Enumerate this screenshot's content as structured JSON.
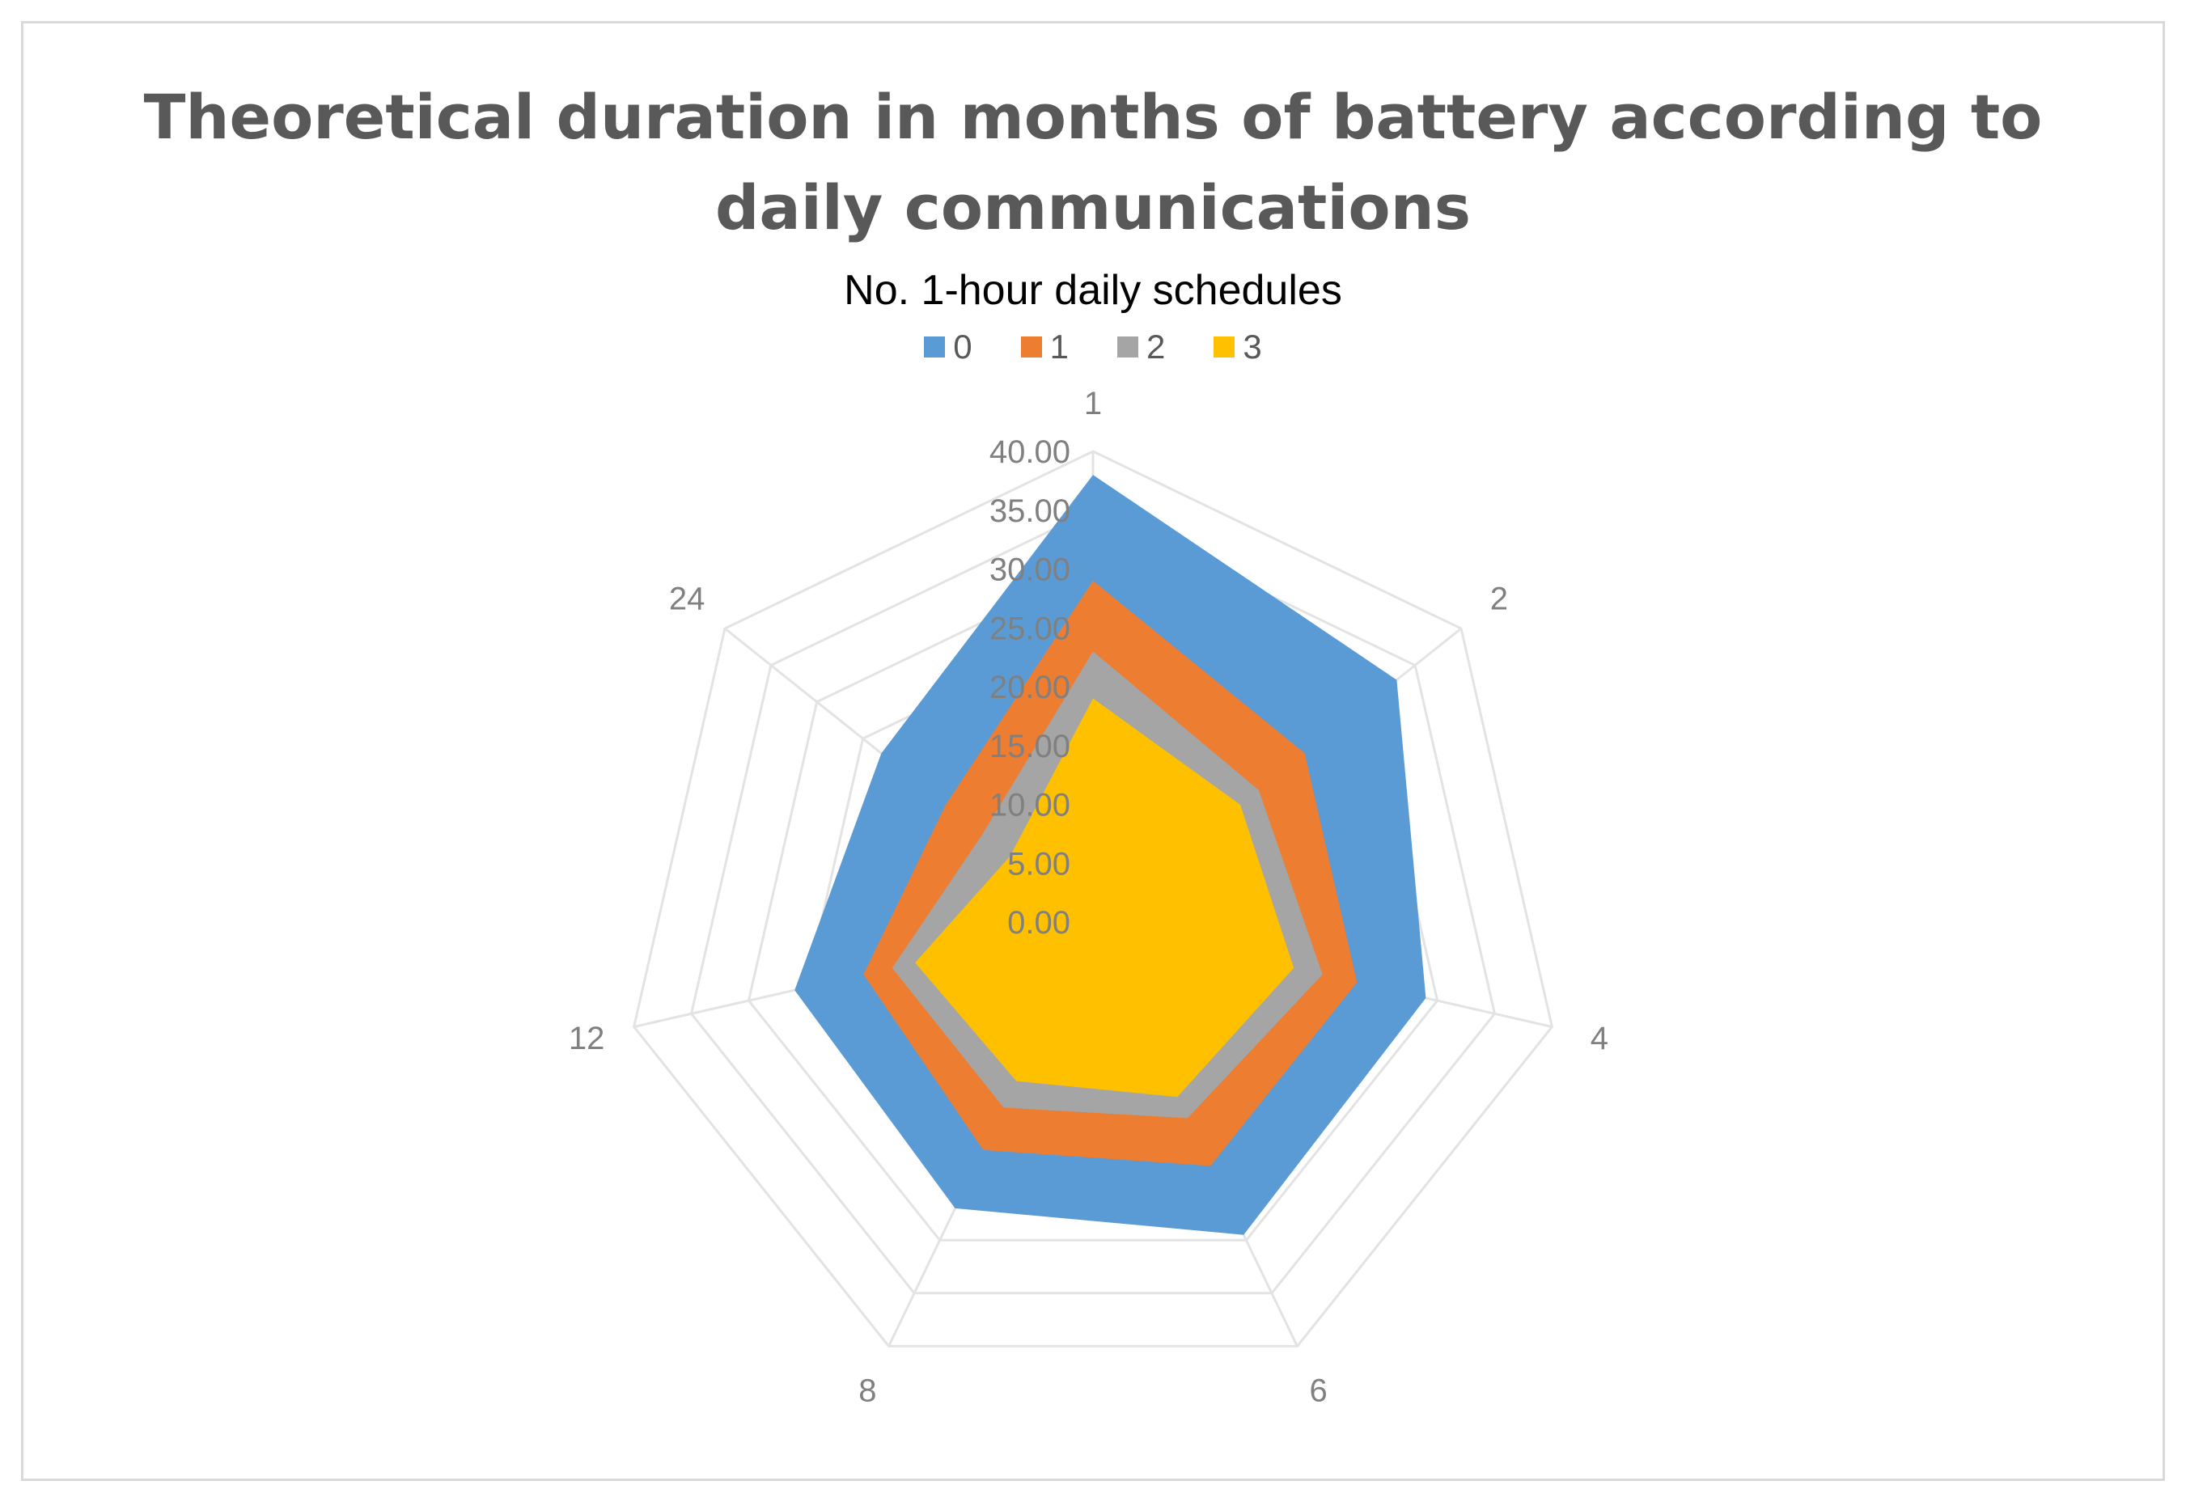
{
  "chart_data": {
    "type": "radar",
    "title": "Theoretical duration in months of battery according to daily communications",
    "title_lines": [
      "Theoretical duration in months of battery according to",
      "daily communications"
    ],
    "legend_title": "No. 1-hour daily schedules",
    "categories": [
      "1",
      "2",
      "4",
      "6",
      "8",
      "12",
      "24"
    ],
    "r_ticks": [
      "0.00",
      "5.00",
      "10.00",
      "15.00",
      "20.00",
      "25.00",
      "30.00",
      "35.00",
      "40.00"
    ],
    "rlim": [
      0,
      40
    ],
    "series": [
      {
        "name": "0",
        "color": "#5b9bd5",
        "values": [
          38,
          33,
          29,
          29.5,
          27,
          26,
          23
        ]
      },
      {
        "name": "1",
        "color": "#ed7d31",
        "values": [
          29,
          23,
          23,
          23,
          21.5,
          20,
          16
        ]
      },
      {
        "name": "2",
        "color": "#a5a5a5",
        "values": [
          23,
          18,
          20,
          18.5,
          17.5,
          17.5,
          12
        ]
      },
      {
        "name": "3",
        "color": "#ffc000",
        "values": [
          19,
          16,
          17.5,
          16.5,
          15,
          15.5,
          9
        ]
      }
    ]
  }
}
